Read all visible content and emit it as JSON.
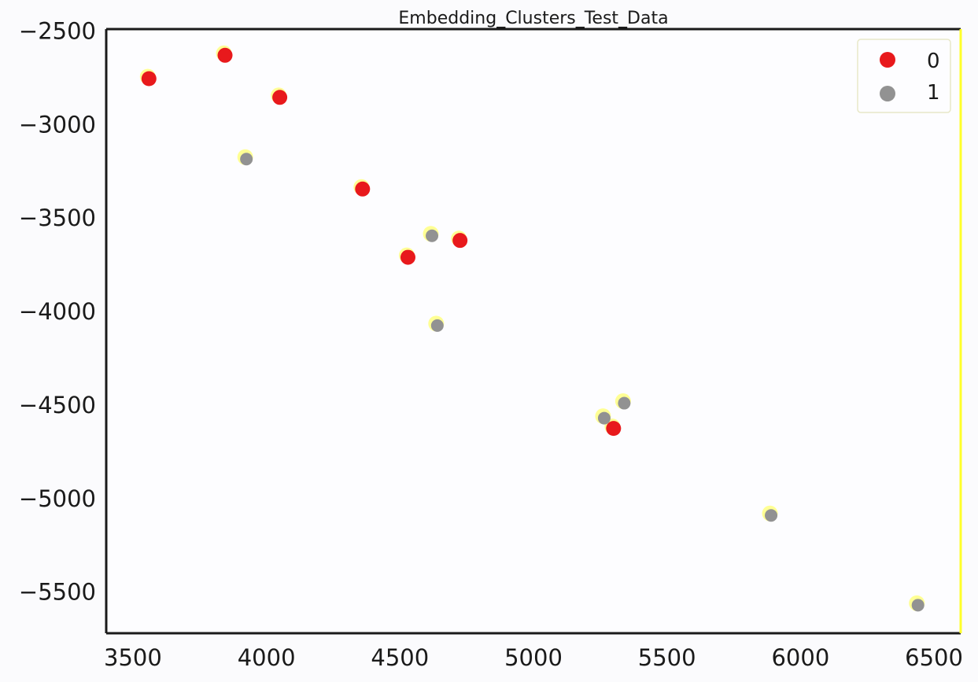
{
  "chart_data": {
    "type": "scatter",
    "title": "Embedding_Clusters_Test_Data",
    "xlabel": "",
    "ylabel": "",
    "xlim": [
      3400,
      6600
    ],
    "ylim": [
      -5720,
      -2490
    ],
    "xticks": [
      3500,
      4000,
      4500,
      5000,
      5500,
      6000,
      6500
    ],
    "yticks": [
      -2500,
      -3000,
      -3500,
      -4000,
      -4500,
      -5000,
      -5500
    ],
    "xtick_labels": [
      "3500",
      "4000",
      "4500",
      "5000",
      "5500",
      "6000",
      "6500"
    ],
    "ytick_labels": [
      "−2500",
      "−3000",
      "−3500",
      "−4000",
      "−4500",
      "−5000",
      "−5500"
    ],
    "grid": false,
    "legend_position": "top-right",
    "series": [
      {
        "name": "0",
        "color": "#e8191c",
        "points": [
          {
            "x": 3560,
            "y": -2755
          },
          {
            "x": 3845,
            "y": -2630
          },
          {
            "x": 4050,
            "y": -2855
          },
          {
            "x": 4360,
            "y": -3345
          },
          {
            "x": 4530,
            "y": -3710
          },
          {
            "x": 4725,
            "y": -3620
          },
          {
            "x": 5300,
            "y": -4625
          }
        ]
      },
      {
        "name": "1",
        "color": "#929292",
        "points": [
          {
            "x": 3925,
            "y": -3185
          },
          {
            "x": 4620,
            "y": -3595
          },
          {
            "x": 4640,
            "y": -4075
          },
          {
            "x": 5265,
            "y": -4570
          },
          {
            "x": 5340,
            "y": -4490
          },
          {
            "x": 5890,
            "y": -5090
          },
          {
            "x": 6440,
            "y": -5570
          }
        ]
      }
    ]
  },
  "colors": {
    "background": "#fbfbfd",
    "spine_dark": "#1a1a1a",
    "spine_highlight": "#ffff2a",
    "marker_halo": "#ffff88"
  }
}
